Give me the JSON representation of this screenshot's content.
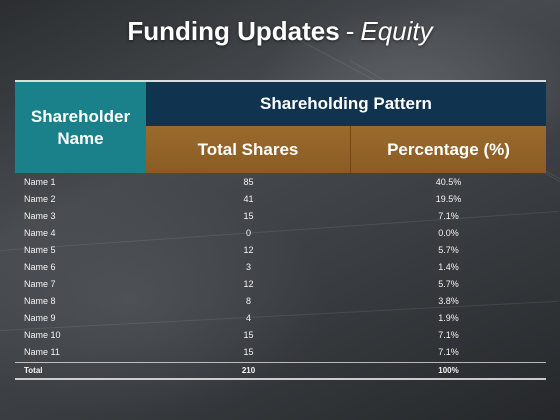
{
  "slide": {
    "title_main": "Funding Updates",
    "title_separator": "-",
    "title_sub": "Equity"
  },
  "table": {
    "header_name": [
      "Shareholder",
      "Name"
    ],
    "header_group": "Shareholding Pattern",
    "header_shares": "Total Shares",
    "header_percentage": "Percentage (%)",
    "rows": [
      {
        "name": "Name 1",
        "shares": "85",
        "pct": "40.5%"
      },
      {
        "name": "Name 2",
        "shares": "41",
        "pct": "19.5%"
      },
      {
        "name": "Name 3",
        "shares": "15",
        "pct": "7.1%"
      },
      {
        "name": "Name 4",
        "shares": "0",
        "pct": "0.0%"
      },
      {
        "name": "Name 5",
        "shares": "12",
        "pct": "5.7%"
      },
      {
        "name": "Name 6",
        "shares": "3",
        "pct": "1.4%"
      },
      {
        "name": "Name 7",
        "shares": "12",
        "pct": "5.7%"
      },
      {
        "name": "Name 8",
        "shares": "8",
        "pct": "3.8%"
      },
      {
        "name": "Name 9",
        "shares": "4",
        "pct": "1.9%"
      },
      {
        "name": "Name 10",
        "shares": "15",
        "pct": "7.1%"
      },
      {
        "name": "Name 11",
        "shares": "15",
        "pct": "7.1%"
      }
    ],
    "total": {
      "name": "Total",
      "shares": "210",
      "pct": "100%"
    }
  },
  "colors": {
    "name_header": "#1a8089",
    "group_header": "#10334f",
    "sub_header": "#9b6a2c"
  }
}
